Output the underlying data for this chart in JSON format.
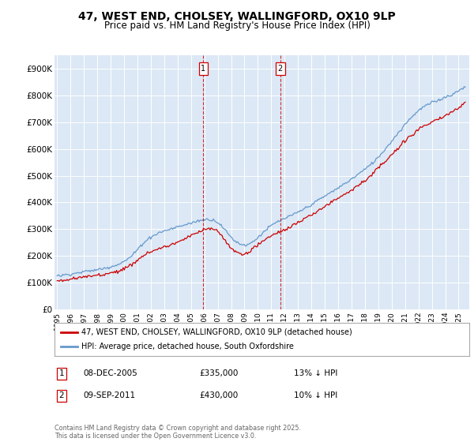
{
  "title_line1": "47, WEST END, CHOLSEY, WALLINGFORD, OX10 9LP",
  "title_line2": "Price paid vs. HM Land Registry's House Price Index (HPI)",
  "ylim": [
    0,
    950000
  ],
  "yticks": [
    0,
    100000,
    200000,
    300000,
    400000,
    500000,
    600000,
    700000,
    800000,
    900000
  ],
  "ytick_labels": [
    "£0",
    "£100K",
    "£200K",
    "£300K",
    "£400K",
    "£500K",
    "£600K",
    "£700K",
    "£800K",
    "£900K"
  ],
  "background_color": "#ffffff",
  "plot_bg_color": "#dce8f5",
  "grid_color": "#ffffff",
  "hpi_color": "#6699cc",
  "price_color": "#cc0000",
  "marker1_x": 2005.92,
  "marker2_x": 2011.68,
  "legend_label1": "47, WEST END, CHOLSEY, WALLINGFORD, OX10 9LP (detached house)",
  "legend_label2": "HPI: Average price, detached house, South Oxfordshire",
  "annotation1_num": "1",
  "annotation1_date": "08-DEC-2005",
  "annotation1_price": "£335,000",
  "annotation1_pct": "13% ↓ HPI",
  "annotation2_num": "2",
  "annotation2_date": "09-SEP-2011",
  "annotation2_price": "£430,000",
  "annotation2_pct": "10% ↓ HPI",
  "footnote": "Contains HM Land Registry data © Crown copyright and database right 2025.\nThis data is licensed under the Open Government Licence v3.0.",
  "xmin": 1994.8,
  "xmax": 2025.8
}
